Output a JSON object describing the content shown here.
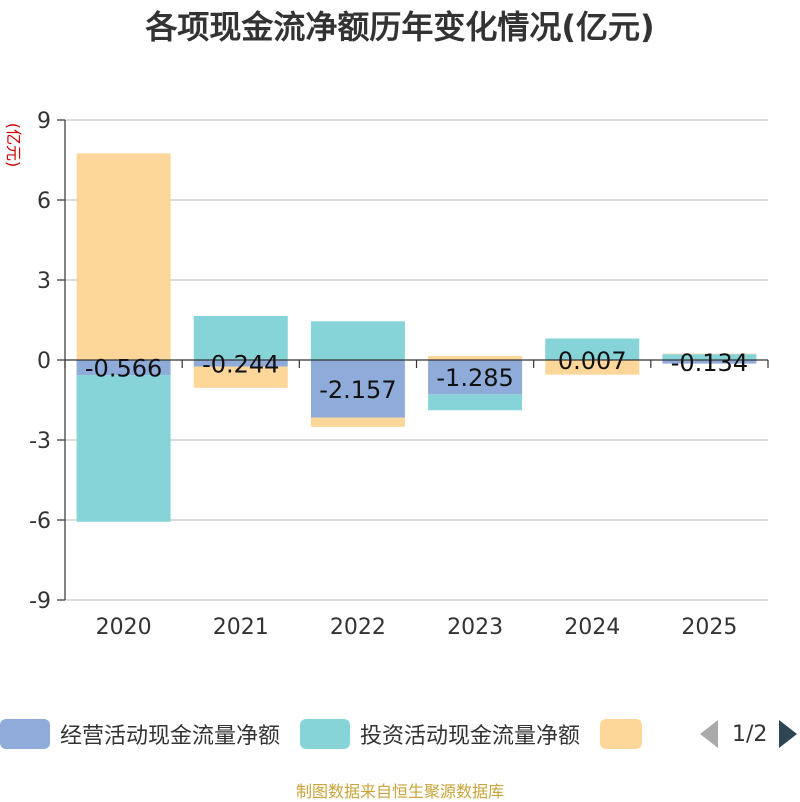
{
  "title": "各项现金流净额历年变化情况(亿元)",
  "source": "制图数据来自恒生聚源数据库",
  "pager": "1/2",
  "chart_data": {
    "type": "bar",
    "stacked": true,
    "title": "各项现金流净额历年变化情况(亿元)",
    "ylabel": "(亿元)",
    "ylim": [
      -9,
      9
    ],
    "yticks": [
      9,
      6,
      3,
      0,
      -3,
      -6,
      -9
    ],
    "categories": [
      "2020",
      "2021",
      "2022",
      "2023",
      "2024",
      "2025"
    ],
    "grid": true,
    "legend": "bottom",
    "series": [
      {
        "name": "经营活动现金流量净额",
        "color": "#8eabd9",
        "values": [
          -0.566,
          -0.244,
          -2.157,
          -1.285,
          0.007,
          -0.134
        ],
        "labels": [
          "-0.566",
          "-0.244",
          "-2.157",
          "-1.285",
          "0.007",
          "-0.134"
        ]
      },
      {
        "name": "投资活动现金流量净额",
        "color": "#86d3d8",
        "values": [
          -5.5,
          1.65,
          1.45,
          -0.6,
          0.8,
          0.22
        ]
      },
      {
        "name": "",
        "color": "#fdd79a",
        "values": [
          7.75,
          -0.8,
          -0.35,
          0.15,
          -0.55,
          0.02
        ]
      }
    ]
  }
}
